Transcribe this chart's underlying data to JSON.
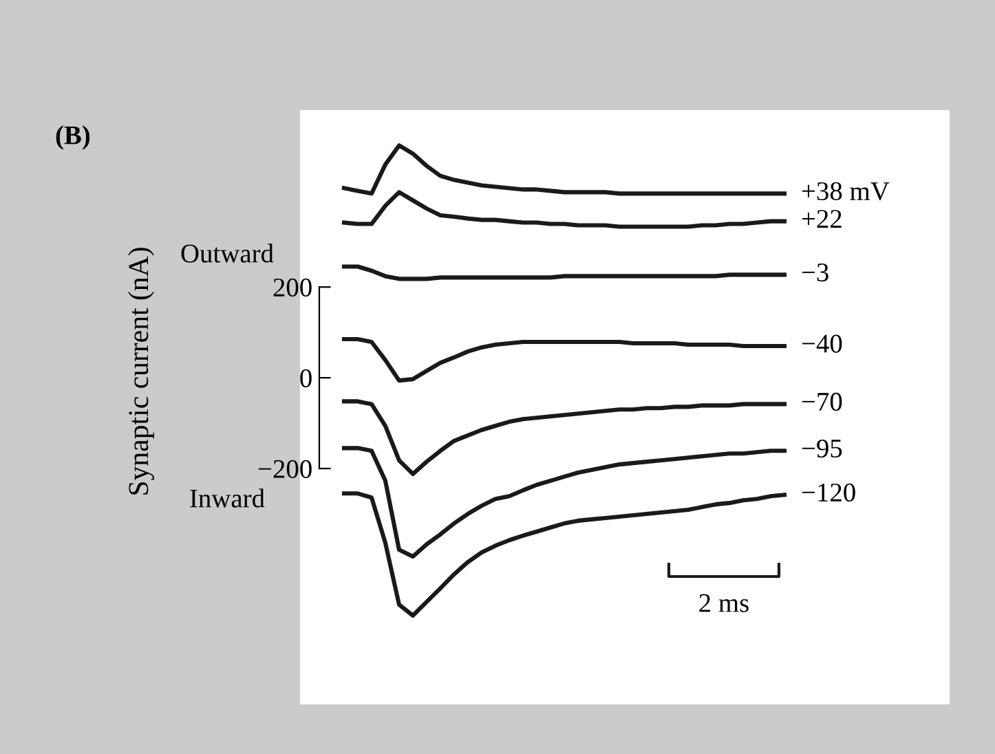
{
  "chart_data": {
    "type": "line",
    "title": "(B)",
    "ylabel": "Synaptic current (nA)",
    "categories": [
      null,
      null,
      null,
      null,
      null,
      null,
      null,
      null,
      null,
      null,
      null,
      null,
      null,
      null,
      null,
      null,
      null,
      null,
      null,
      null,
      null,
      null,
      null,
      null,
      null,
      null,
      null,
      null,
      null,
      null,
      null,
      null,
      null
    ],
    "ylim": [
      -720,
      590
    ],
    "yticks": [
      -200,
      0,
      200
    ],
    "tick_labels": "y",
    "grid": false,
    "legend": false,
    "marker": "none",
    "line_style": "solid",
    "annotations": [
      "Outward",
      "Inward",
      "2 ms"
    ],
    "series": [
      {
        "name": "+38 mV",
        "color": "#1a1a1a",
        "values": [
          418,
          412,
          406,
          470,
          512,
          494,
          467,
          445,
          436,
          430,
          424,
          421,
          418,
          415,
          415,
          412,
          409,
          409,
          409,
          409,
          406,
          406,
          406,
          406,
          406,
          406,
          406,
          406,
          406,
          406,
          406,
          406,
          406
        ]
      },
      {
        "name": "+22",
        "color": "#1a1a1a",
        "values": [
          342,
          339,
          339,
          379,
          409,
          391,
          373,
          358,
          355,
          351,
          348,
          348,
          345,
          342,
          342,
          339,
          339,
          336,
          336,
          336,
          333,
          333,
          333,
          333,
          333,
          333,
          336,
          336,
          339,
          339,
          342,
          345,
          345
        ]
      },
      {
        "name": "−3",
        "color": "#1a1a1a",
        "values": [
          245,
          245,
          236,
          224,
          218,
          218,
          218,
          221,
          221,
          221,
          221,
          221,
          221,
          221,
          221,
          221,
          224,
          224,
          224,
          224,
          224,
          224,
          224,
          224,
          224,
          224,
          224,
          224,
          227,
          227,
          227,
          227,
          227
        ]
      },
      {
        "name": "−40",
        "color": "#1a1a1a",
        "values": [
          85,
          85,
          79,
          39,
          -6,
          -3,
          15,
          33,
          45,
          58,
          67,
          73,
          76,
          79,
          79,
          79,
          79,
          79,
          79,
          79,
          79,
          76,
          76,
          76,
          76,
          73,
          73,
          73,
          73,
          70,
          70,
          70,
          70
        ]
      },
      {
        "name": "−70",
        "color": "#1a1a1a",
        "values": [
          -52,
          -52,
          -58,
          -106,
          -182,
          -212,
          -185,
          -161,
          -139,
          -127,
          -115,
          -106,
          -97,
          -91,
          -88,
          -85,
          -82,
          -79,
          -76,
          -73,
          -70,
          -70,
          -67,
          -67,
          -64,
          -64,
          -61,
          -61,
          -61,
          -58,
          -58,
          -58,
          -58
        ]
      },
      {
        "name": "−95",
        "color": "#1a1a1a",
        "values": [
          -155,
          -155,
          -161,
          -227,
          -379,
          -394,
          -367,
          -345,
          -321,
          -300,
          -282,
          -267,
          -261,
          -248,
          -236,
          -227,
          -218,
          -209,
          -203,
          -197,
          -191,
          -188,
          -185,
          -182,
          -179,
          -176,
          -173,
          -170,
          -167,
          -167,
          -164,
          -161,
          -161
        ]
      },
      {
        "name": "−120",
        "color": "#1a1a1a",
        "values": [
          -255,
          -255,
          -264,
          -364,
          -500,
          -524,
          -494,
          -464,
          -433,
          -406,
          -385,
          -370,
          -358,
          -348,
          -339,
          -330,
          -321,
          -315,
          -312,
          -309,
          -306,
          -303,
          -300,
          -297,
          -294,
          -291,
          -285,
          -279,
          -276,
          -270,
          -267,
          -261,
          -258
        ]
      }
    ]
  }
}
